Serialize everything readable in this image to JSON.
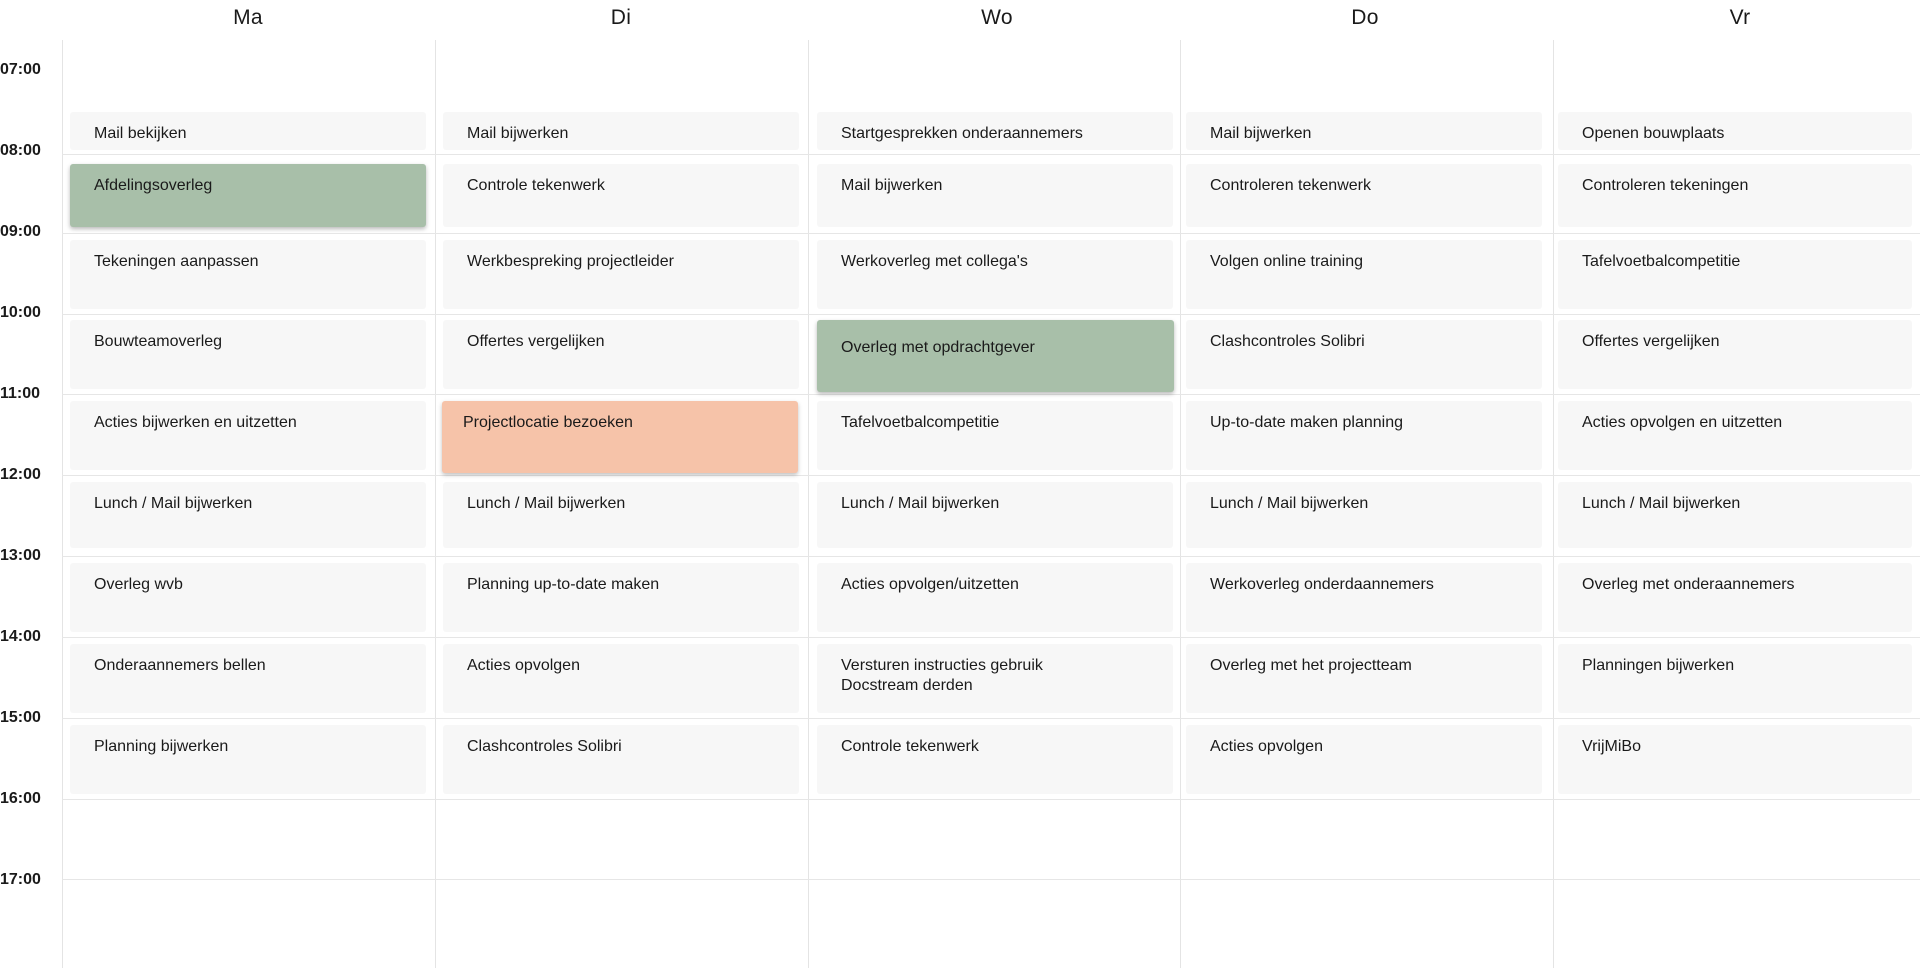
{
  "days": [
    "Ma",
    "Di",
    "Wo",
    "Do",
    "Vr"
  ],
  "times": [
    "07:00",
    "08:00",
    "09:00",
    "10:00",
    "11:00",
    "12:00",
    "13:00",
    "14:00",
    "15:00",
    "16:00",
    "17:00"
  ],
  "colors": {
    "plain": "#f7f7f7",
    "green": "#a8bfa9",
    "orange": "#f6c3a9",
    "grid": "#e4e4e4"
  },
  "events": [
    [
      {
        "label": "Mail bekijken",
        "kind": "plain"
      },
      {
        "label": "Afdelingsoverleg",
        "kind": "green"
      },
      {
        "label": "Tekeningen aanpassen",
        "kind": "plain"
      },
      {
        "label": "Bouwteamoverleg",
        "kind": "plain"
      },
      {
        "label": "Acties bijwerken en uitzetten",
        "kind": "plain"
      },
      {
        "label": "Lunch / Mail bijwerken",
        "kind": "plain"
      },
      {
        "label": "Overleg wvb",
        "kind": "plain"
      },
      {
        "label": "Onderaannemers bellen",
        "kind": "plain"
      },
      {
        "label": "Planning bijwerken",
        "kind": "plain"
      }
    ],
    [
      {
        "label": "Mail bijwerken",
        "kind": "plain"
      },
      {
        "label": "Controle tekenwerk",
        "kind": "plain"
      },
      {
        "label": "Werkbespreking projectleider",
        "kind": "plain"
      },
      {
        "label": "Offertes vergelijken",
        "kind": "plain"
      },
      {
        "label": "Projectlocatie bezoeken",
        "kind": "orange"
      },
      {
        "label": "Lunch / Mail bijwerken",
        "kind": "plain"
      },
      {
        "label": "Planning up-to-date maken",
        "kind": "plain"
      },
      {
        "label": "Acties opvolgen",
        "kind": "plain"
      },
      {
        "label": "Clashcontroles Solibri",
        "kind": "plain"
      }
    ],
    [
      {
        "label": "Startgesprekken onderaannemers",
        "kind": "plain"
      },
      {
        "label": "Mail bijwerken",
        "kind": "plain"
      },
      {
        "label": "Werkoverleg met collega's",
        "kind": "plain"
      },
      {
        "label": "Overleg met opdrachtgever",
        "kind": "green"
      },
      {
        "label": "Tafelvoetbalcompetitie",
        "kind": "plain"
      },
      {
        "label": "Lunch / Mail bijwerken",
        "kind": "plain"
      },
      {
        "label": "Acties opvolgen/uitzetten",
        "kind": "plain"
      },
      {
        "label": "Versturen instructies gebruik Docstream derden",
        "kind": "plain"
      },
      {
        "label": "Controle tekenwerk",
        "kind": "plain"
      }
    ],
    [
      {
        "label": "Mail bijwerken",
        "kind": "plain"
      },
      {
        "label": "Controleren tekenwerk",
        "kind": "plain"
      },
      {
        "label": "Volgen online training",
        "kind": "plain"
      },
      {
        "label": "Clashcontroles Solibri",
        "kind": "plain"
      },
      {
        "label": "Up-to-date maken planning",
        "kind": "plain"
      },
      {
        "label": "Lunch / Mail bijwerken",
        "kind": "plain"
      },
      {
        "label": "Werkoverleg onderdaannemers",
        "kind": "plain"
      },
      {
        "label": "Overleg met het projectteam",
        "kind": "plain"
      },
      {
        "label": "Acties opvolgen",
        "kind": "plain"
      }
    ],
    [
      {
        "label": "Openen bouwplaats",
        "kind": "plain"
      },
      {
        "label": "Controleren tekeningen",
        "kind": "plain"
      },
      {
        "label": "Tafelvoetbalcompetitie",
        "kind": "plain"
      },
      {
        "label": "Offertes vergelijken",
        "kind": "plain"
      },
      {
        "label": "Acties opvolgen en uitzetten",
        "kind": "plain"
      },
      {
        "label": "Lunch / Mail bijwerken",
        "kind": "plain"
      },
      {
        "label": "Overleg met onderaannemers",
        "kind": "plain"
      },
      {
        "label": "Planningen bijwerken",
        "kind": "plain"
      },
      {
        "label": "VrijMiBo",
        "kind": "plain"
      }
    ]
  ]
}
